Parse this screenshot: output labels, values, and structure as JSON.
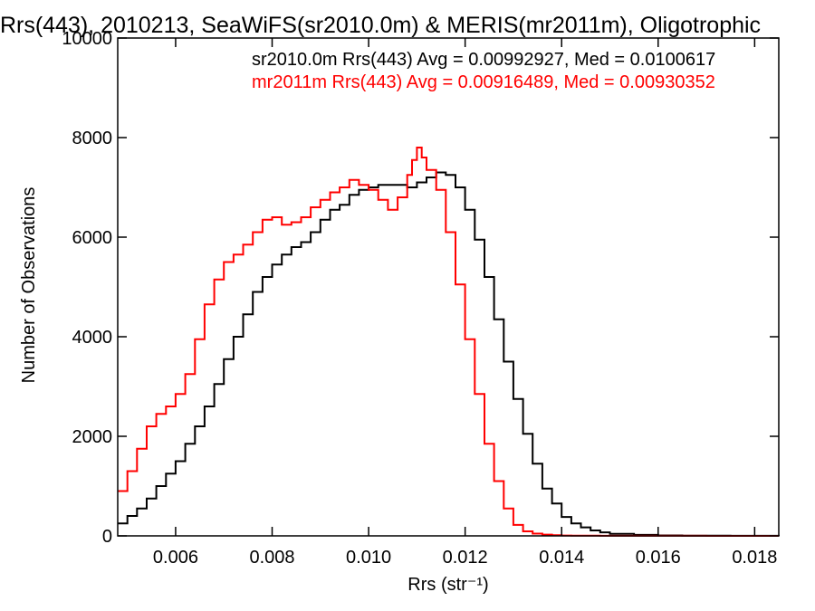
{
  "chart_data": {
    "type": "line",
    "title": "Rrs(443), 2010213, SeaWiFS(sr2010.0m) & MERIS(mr2011m), Oligotrophic",
    "xlabel": "Rrs (str⁻¹)",
    "ylabel": "Number of Observations",
    "xlim": [
      0.0048,
      0.0185
    ],
    "ylim": [
      0,
      10000
    ],
    "xticks": [
      0.006,
      0.008,
      0.01,
      0.012,
      0.014,
      0.016,
      0.018
    ],
    "xtick_labels": [
      "0.006",
      "0.008",
      "0.010",
      "0.012",
      "0.014",
      "0.016",
      "0.018"
    ],
    "yticks": [
      0,
      2000,
      4000,
      6000,
      8000,
      10000
    ],
    "ytick_labels": [
      "0",
      "2000",
      "4000",
      "6000",
      "8000",
      "10000"
    ],
    "grid": false,
    "annotations": [
      {
        "text": "sr2010.0m Rrs(443) Avg = 0.00992927, Med = 0.0100617",
        "color": "#000000"
      },
      {
        "text": "mr2011m Rrs(443) Avg = 0.00916489, Med = 0.00930352",
        "color": "#ff0000"
      }
    ],
    "series": [
      {
        "color": "#000000",
        "x": [
          0.0048,
          0.005,
          0.0052,
          0.0054,
          0.0056,
          0.0058,
          0.006,
          0.0062,
          0.0064,
          0.0066,
          0.0068,
          0.007,
          0.0072,
          0.0074,
          0.0076,
          0.0078,
          0.008,
          0.0082,
          0.0084,
          0.0086,
          0.0088,
          0.009,
          0.0092,
          0.0094,
          0.0096,
          0.0098,
          0.01,
          0.0102,
          0.0104,
          0.0106,
          0.0108,
          0.011,
          0.0112,
          0.0114,
          0.0116,
          0.0118,
          0.012,
          0.0122,
          0.0124,
          0.0126,
          0.0128,
          0.013,
          0.0132,
          0.0134,
          0.0136,
          0.0138,
          0.014,
          0.0142,
          0.0144,
          0.0146,
          0.0148,
          0.015,
          0.0155,
          0.016,
          0.0165,
          0.017,
          0.0175,
          0.018,
          0.0185
        ],
        "values": [
          250,
          400,
          550,
          750,
          1000,
          1250,
          1500,
          1850,
          2200,
          2600,
          3050,
          3550,
          4000,
          4450,
          4900,
          5200,
          5450,
          5650,
          5800,
          5900,
          6100,
          6350,
          6550,
          6650,
          6850,
          6950,
          7000,
          7050,
          7050,
          7050,
          7000,
          7100,
          7200,
          7300,
          7250,
          7000,
          6550,
          5950,
          5200,
          4350,
          3500,
          2750,
          2050,
          1450,
          950,
          650,
          380,
          250,
          170,
          110,
          70,
          40,
          20,
          10,
          5,
          3,
          2,
          1,
          0
        ]
      },
      {
        "color": "#ff0000",
        "x": [
          0.0048,
          0.005,
          0.0052,
          0.0054,
          0.0056,
          0.0058,
          0.006,
          0.0062,
          0.0064,
          0.0066,
          0.0068,
          0.007,
          0.0072,
          0.0074,
          0.0076,
          0.0078,
          0.008,
          0.0082,
          0.0084,
          0.0086,
          0.0088,
          0.009,
          0.0092,
          0.0094,
          0.0096,
          0.0098,
          0.01,
          0.0102,
          0.0104,
          0.0106,
          0.0108,
          0.0109,
          0.011,
          0.0111,
          0.0112,
          0.0114,
          0.0116,
          0.0118,
          0.012,
          0.0122,
          0.0124,
          0.0126,
          0.0128,
          0.013,
          0.0132,
          0.0134,
          0.0136,
          0.0138,
          0.014,
          0.0142,
          0.0144,
          0.0146,
          0.0148,
          0.015,
          0.0155,
          0.016,
          0.017,
          0.0185
        ],
        "values": [
          900,
          1300,
          1750,
          2200,
          2450,
          2600,
          2850,
          3250,
          3950,
          4650,
          5150,
          5500,
          5650,
          5850,
          6100,
          6350,
          6400,
          6250,
          6300,
          6400,
          6600,
          6750,
          6900,
          7000,
          7150,
          7050,
          6950,
          6750,
          6550,
          6800,
          7250,
          7550,
          7800,
          7600,
          7350,
          6950,
          6100,
          5050,
          3950,
          2850,
          1850,
          1100,
          550,
          220,
          90,
          45,
          25,
          15,
          8,
          5,
          4,
          3,
          2,
          2,
          1,
          1,
          0,
          0
        ]
      }
    ]
  }
}
